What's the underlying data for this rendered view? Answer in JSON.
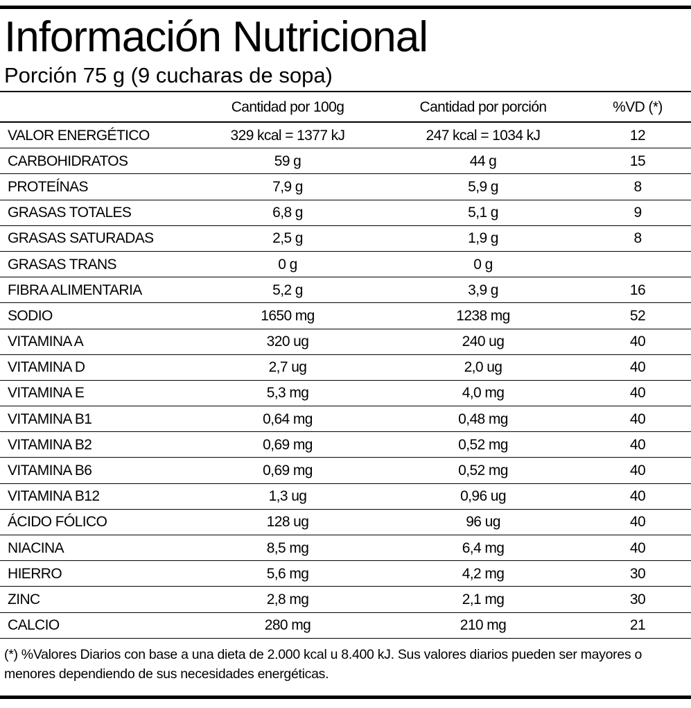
{
  "label": {
    "title": "Información Nutricional",
    "serving": "Porción 75 g (9 cucharas de sopa)",
    "columns": {
      "nutrient": "",
      "per_100g": "Cantidad por 100g",
      "per_serving": "Cantidad por porción",
      "daily_value": "%VD (*)"
    },
    "rows": [
      {
        "nutrient": "VALOR ENERGÉTICO",
        "per_100g": "329 kcal = 1377 kJ",
        "per_serving": "247 kcal = 1034 kJ",
        "daily_value": "12"
      },
      {
        "nutrient": "CARBOHIDRATOS",
        "per_100g": "59 g",
        "per_serving": "44 g",
        "daily_value": "15"
      },
      {
        "nutrient": "PROTEÍNAS",
        "per_100g": "7,9 g",
        "per_serving": "5,9 g",
        "daily_value": "8"
      },
      {
        "nutrient": "GRASAS TOTALES",
        "per_100g": "6,8 g",
        "per_serving": "5,1 g",
        "daily_value": "9"
      },
      {
        "nutrient": "GRASAS SATURADAS",
        "per_100g": "2,5 g",
        "per_serving": "1,9 g",
        "daily_value": "8"
      },
      {
        "nutrient": "GRASAS TRANS",
        "per_100g": "0 g",
        "per_serving": "0 g",
        "daily_value": ""
      },
      {
        "nutrient": "FIBRA ALIMENTARIA",
        "per_100g": "5,2 g",
        "per_serving": "3,9 g",
        "daily_value": "16"
      },
      {
        "nutrient": "SODIO",
        "per_100g": "1650 mg",
        "per_serving": "1238 mg",
        "daily_value": "52"
      },
      {
        "nutrient": "VITAMINA A",
        "per_100g": "320 ug",
        "per_serving": "240 ug",
        "daily_value": "40"
      },
      {
        "nutrient": "VITAMINA D",
        "per_100g": "2,7 ug",
        "per_serving": "2,0 ug",
        "daily_value": "40"
      },
      {
        "nutrient": "VITAMINA E",
        "per_100g": "5,3 mg",
        "per_serving": "4,0 mg",
        "daily_value": "40"
      },
      {
        "nutrient": "VITAMINA B1",
        "per_100g": "0,64 mg",
        "per_serving": "0,48 mg",
        "daily_value": "40"
      },
      {
        "nutrient": "VITAMINA B2",
        "per_100g": "0,69 mg",
        "per_serving": "0,52 mg",
        "daily_value": "40"
      },
      {
        "nutrient": "VITAMINA B6",
        "per_100g": "0,69 mg",
        "per_serving": "0,52 mg",
        "daily_value": "40"
      },
      {
        "nutrient": "VITAMINA B12",
        "per_100g": "1,3 ug",
        "per_serving": "0,96 ug",
        "daily_value": "40"
      },
      {
        "nutrient": "ÁCIDO FÓLICO",
        "per_100g": "128 ug",
        "per_serving": "96 ug",
        "daily_value": "40"
      },
      {
        "nutrient": "NIACINA",
        "per_100g": "8,5 mg",
        "per_serving": "6,4 mg",
        "daily_value": "40"
      },
      {
        "nutrient": "HIERRO",
        "per_100g": "5,6 mg",
        "per_serving": "4,2 mg",
        "daily_value": "30"
      },
      {
        "nutrient": "ZINC",
        "per_100g": "2,8 mg",
        "per_serving": "2,1 mg",
        "daily_value": "30"
      },
      {
        "nutrient": "CALCIO",
        "per_100g": "280 mg",
        "per_serving": "210 mg",
        "daily_value": "21"
      }
    ],
    "footnote": "(*) %Valores Diarios con base a una dieta de 2.000 kcal u 8.400 kJ. Sus valores diarios pueden ser mayores o menores dependiendo de sus necesidades energéticas."
  }
}
